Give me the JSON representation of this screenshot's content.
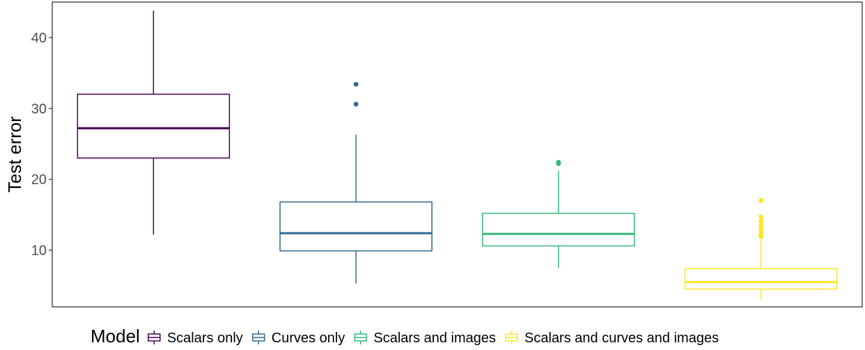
{
  "chart_data": {
    "type": "box",
    "title": "",
    "xlabel": "",
    "ylabel": "Test error",
    "ylim": [
      2.0,
      45.0
    ],
    "yticks": [
      10,
      20,
      30,
      40
    ],
    "grid": false,
    "legend_title": "Model",
    "legend_position": "bottom",
    "series": [
      {
        "name": "Scalars only",
        "color": "#440154",
        "whisker_low": 12.2,
        "q1": 23.0,
        "median": 27.2,
        "q3": 32.0,
        "whisker_high": 43.8,
        "outliers": []
      },
      {
        "name": "Curves only",
        "color": "#31688E",
        "whisker_low": 5.3,
        "q1": 9.9,
        "median": 12.4,
        "q3": 16.8,
        "whisker_high": 26.3,
        "outliers": [
          30.6,
          33.4
        ]
      },
      {
        "name": "Scalars and images",
        "color": "#35B779",
        "whisker_low": 7.5,
        "q1": 10.6,
        "median": 12.3,
        "q3": 15.2,
        "whisker_high": 21.2,
        "outliers": [
          22.2,
          22.4
        ]
      },
      {
        "name": "Scalars and curves and images",
        "color": "#FDE725",
        "whisker_low": 3.0,
        "q1": 4.5,
        "median": 5.5,
        "q3": 7.4,
        "whisker_high": 11.5,
        "outliers": [
          11.9,
          12.2,
          12.6,
          13.1,
          13.6,
          14.1,
          14.7,
          17.0
        ]
      }
    ]
  }
}
